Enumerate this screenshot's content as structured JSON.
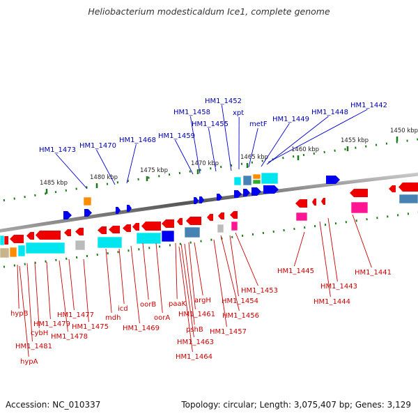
{
  "title": "Heliobacterium modesticaldum Ice1, complete genome",
  "footer": {
    "accession": "Accession: NC_010337",
    "stats": "Topology: circular; Length: 3,075,407 bp; Genes: 3,129"
  },
  "colors": {
    "forward_label": "#0000aa",
    "reverse_label": "#cc0000",
    "forward_gene": "#0000ee",
    "reverse_gene": "#ee0000",
    "cyan": "#00e5ee",
    "steel": "#4682b4",
    "magenta": "#ff1493",
    "orange": "#ff8c00",
    "gray": "#bbbbbb",
    "backbone": "#888888",
    "tick": "#1a7a1a"
  },
  "kbp_labels": [
    "1450 kbp",
    "1455 kbp",
    "1460 kbp",
    "1465 kbp",
    "1470 kbp",
    "1475 kbp",
    "1480 kbp",
    "1485 kbp"
  ],
  "forward_labels": [
    "HM1_1442",
    "HM1_1448",
    "HM1_1449",
    "metF",
    "xpt",
    "HM1_1452",
    "HM1_1455",
    "HM1_1458",
    "HM1_1459",
    "HM1_1468",
    "HM1_1470",
    "HM1_1473"
  ],
  "reverse_labels": [
    "HM1_1441",
    "HM1_1443",
    "HM1_1444",
    "HM1_1445",
    "HM1_1453",
    "HM1_1454",
    "HM1_1456",
    "HM1_1457",
    "argH",
    "HM1_1461",
    "pshB",
    "HM1_1463",
    "HM1_1464",
    "paaK",
    "oorA",
    "oorB",
    "HM1_1469",
    "icd",
    "mdh",
    "HM1_1475",
    "HM1_1477",
    "HM1_1478",
    "HM1_1479",
    "cybH",
    "HM1_1481",
    "hypB",
    "hypA"
  ]
}
